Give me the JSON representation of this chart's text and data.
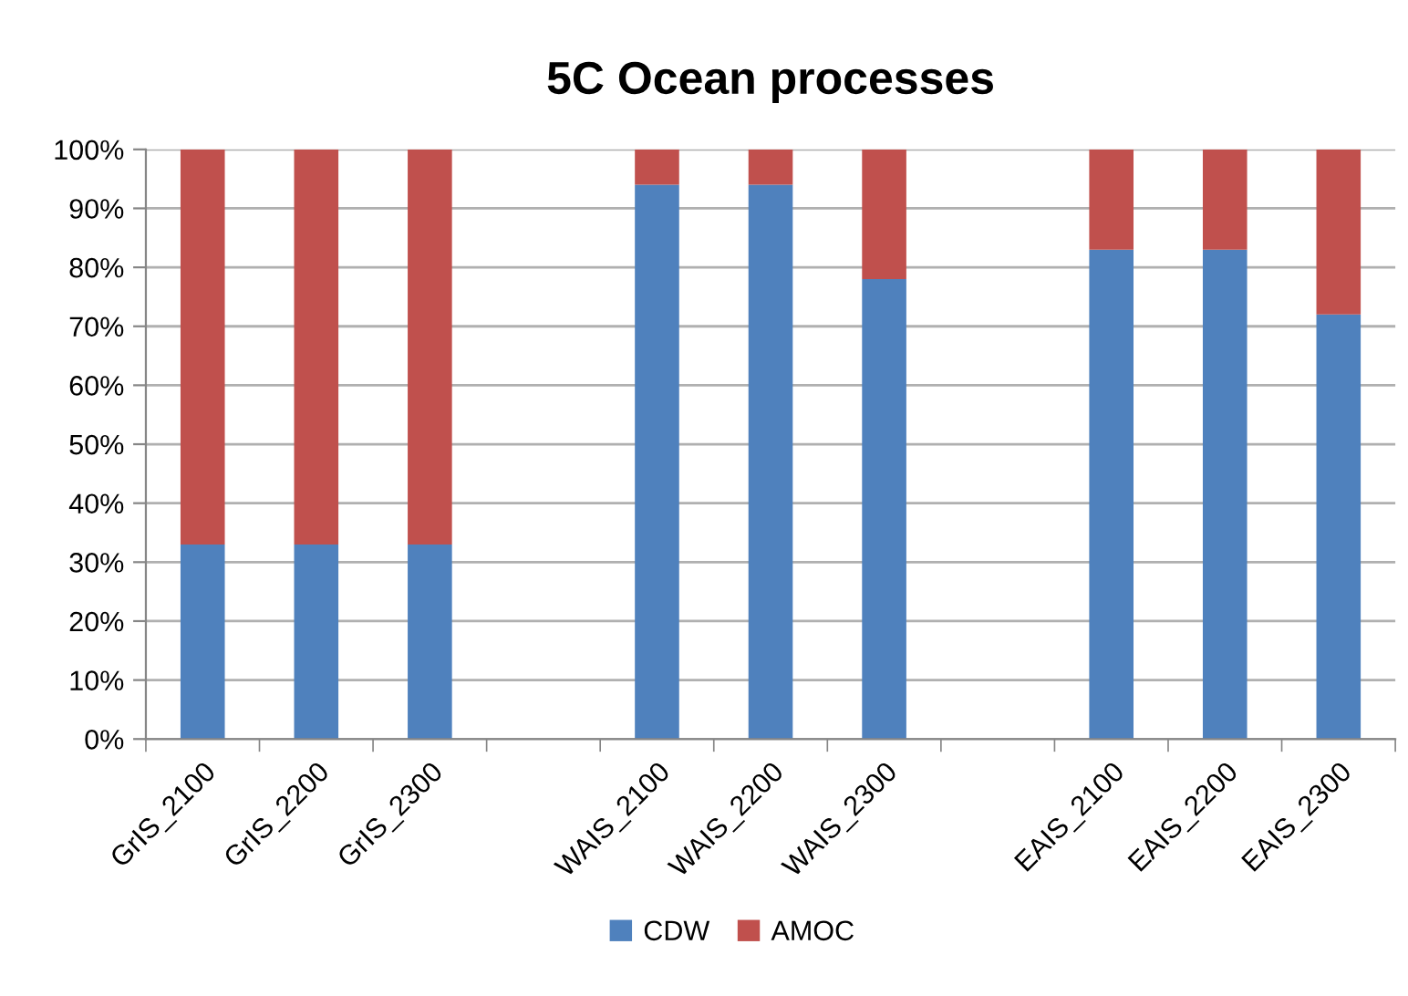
{
  "chart_data": {
    "type": "bar",
    "title": "5C Ocean processes",
    "categories": [
      "GrIS_2100",
      "GrIS_2200",
      "GrIS_2300",
      null,
      "WAIS_2100",
      "WAIS_2200",
      "WAIS_2300",
      null,
      "EAIS_2100",
      "EAIS_2200",
      "EAIS_2300"
    ],
    "series": [
      {
        "name": "CDW",
        "color": "#4f81bd",
        "values": [
          33,
          33,
          33,
          null,
          94,
          94,
          78,
          null,
          83,
          83,
          72
        ]
      },
      {
        "name": "AMOC",
        "color": "#c0504d",
        "values": [
          67,
          67,
          67,
          null,
          6,
          6,
          22,
          null,
          17,
          17,
          28
        ]
      }
    ],
    "stacked": true,
    "ylim": [
      0,
      100
    ],
    "yticks": [
      {
        "value": 0,
        "label": "0%"
      },
      {
        "value": 10,
        "label": "10%"
      },
      {
        "value": 20,
        "label": "20%"
      },
      {
        "value": 30,
        "label": "30%"
      },
      {
        "value": 40,
        "label": "40%"
      },
      {
        "value": 50,
        "label": "50%"
      },
      {
        "value": 60,
        "label": "60%"
      },
      {
        "value": 70,
        "label": "70%"
      },
      {
        "value": 80,
        "label": "80%"
      },
      {
        "value": 90,
        "label": "90%"
      },
      {
        "value": 100,
        "label": "100%"
      }
    ],
    "grid": "y",
    "legend": "bottom"
  }
}
